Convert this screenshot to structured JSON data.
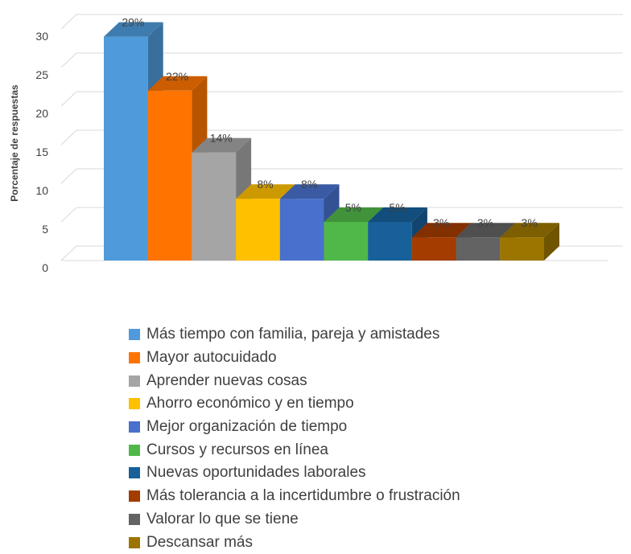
{
  "chart_data": {
    "type": "bar",
    "style": "3d-column",
    "ylabel": "Porcentaje de respuestas",
    "xlabel": "",
    "ylim": [
      0,
      30
    ],
    "yticks": [
      0,
      5,
      10,
      15,
      20,
      25,
      30
    ],
    "grid": true,
    "legend_position": "bottom",
    "categories": [
      "Más tiempo con familia, pareja y amistades",
      "Mayor autocuidado",
      "Aprender nuevas cosas",
      "Ahorro económico y en tiempo",
      "Mejor organización de tiempo",
      "Cursos y recursos en línea",
      "Nuevas oportunidades laborales",
      "Más tolerancia a la incertidumbre o frustración",
      "Valorar lo que se tiene",
      "Descansar más"
    ],
    "values": [
      29,
      22,
      14,
      8,
      8,
      5,
      5,
      3,
      3,
      3
    ],
    "data_labels": [
      "29%",
      "22%",
      "14%",
      "8%",
      "8%",
      "5%",
      "5%",
      "3%",
      "3%",
      "3%"
    ],
    "colors": [
      "#4e9ada",
      "#ff7400",
      "#a5a5a5",
      "#ffc000",
      "#4870cc",
      "#50b848",
      "#17609a",
      "#a43c00",
      "#636363",
      "#9c7500"
    ]
  }
}
